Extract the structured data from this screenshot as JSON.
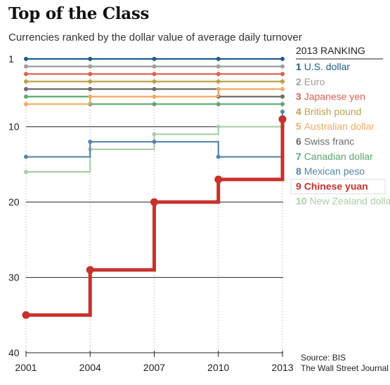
{
  "title": "Top of the Class",
  "subtitle": "Currencies ranked by the dollar value of average daily turnover",
  "legend_title": "2013 RANKING",
  "source": [
    "Source: BIS",
    "The Wall Street Journal"
  ],
  "colors": {
    "axis": "#222222",
    "grid_dots": "#b0b0b0",
    "highlight_bg": "#ffffff"
  },
  "chart_data": {
    "type": "line",
    "step": true,
    "x": [
      "2001",
      "2004",
      "2007",
      "2010",
      "2013"
    ],
    "ylim": [
      1,
      40
    ],
    "y_reversed": true,
    "y_ticks": [
      "1",
      "10",
      "20",
      "30",
      "40"
    ],
    "legend_placement": "right",
    "series": [
      {
        "name": "U.S. dollar",
        "rank": 1,
        "color": "#1f5d8c",
        "values": [
          1,
          1,
          1,
          1,
          1
        ]
      },
      {
        "name": "Euro",
        "rank": 2,
        "color": "#9e9e9e",
        "values": [
          2,
          2,
          2,
          2,
          2
        ]
      },
      {
        "name": "Japanese yen",
        "rank": 3,
        "color": "#e06050",
        "values": [
          3,
          3,
          3,
          3,
          3
        ]
      },
      {
        "name": "British pound",
        "rank": 4,
        "color": "#bba24a",
        "values": [
          4,
          4,
          4,
          4,
          4
        ]
      },
      {
        "name": "Australian dollar",
        "rank": 5,
        "color": "#f5a964",
        "values": [
          7,
          6,
          6,
          5,
          5
        ]
      },
      {
        "name": "Swiss franc",
        "rank": 6,
        "color": "#6b6b6b",
        "values": [
          5,
          5,
          5,
          6,
          6
        ]
      },
      {
        "name": "Canadian dollar",
        "rank": 7,
        "color": "#5ea872",
        "values": [
          6,
          7,
          7,
          7,
          7
        ]
      },
      {
        "name": "Mexican peso",
        "rank": 8,
        "color": "#5585ab",
        "values": [
          14,
          12,
          12,
          14,
          8
        ]
      },
      {
        "name": "Chinese yuan",
        "rank": 9,
        "color": "#c8312b",
        "values": [
          35,
          29,
          20,
          17,
          9
        ],
        "highlight": true
      },
      {
        "name": "New Zealand dollar",
        "rank": 10,
        "color": "#a9cfa8",
        "values": [
          16,
          13,
          11,
          10,
          10
        ]
      }
    ]
  }
}
